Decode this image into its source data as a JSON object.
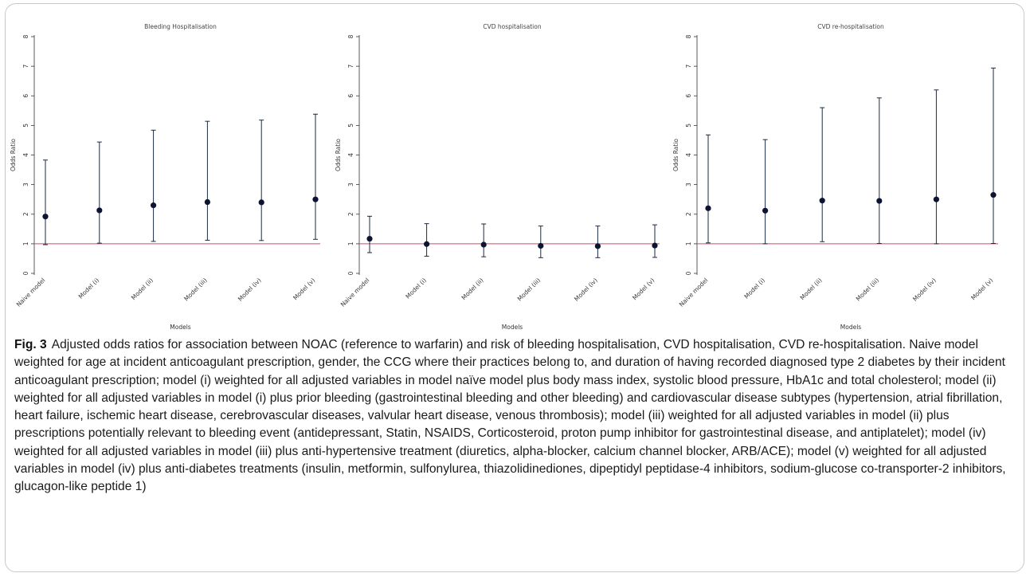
{
  "figure": {
    "label": "Fig. 3",
    "caption": "Adjusted odds ratios for association between NOAC (reference to warfarin) and risk of bleeding hospitalisation, CVD hospitalisation, CVD re-hospitalisation. Naive model weighted for age at incident anticoagulant prescription, gender, the CCG where their practices belong to, and duration of having recorded diagnosed type 2 diabetes by their incident anticoagulant prescription; model (i) weighted for all adjusted variables in model naïve model plus body mass index, systolic blood pressure, HbA1c and total cholesterol; model (ii) weighted for all adjusted variables in model (i) plus prior bleeding (gastrointestinal bleeding and other bleeding) and cardiovascular disease subtypes (hypertension, atrial fibrillation, heart failure, ischemic heart disease, cerebrovascular diseases, valvular heart disease, venous thrombosis); model (iii) weighted for all adjusted variables in model (ii) plus prescriptions potentially relevant to bleeding event (antidepressant, Statin, NSAIDS, Corticosteroid, proton pump inhibitor for gastrointestinal disease, and antiplatelet); model (iv) weighted for all adjusted variables in model (iii) plus anti-hypertensive treatment (diuretics, alpha-blocker, calcium channel blocker, ARB/ACE); model (v) weighted for all adjusted variables in model (iv) plus anti-diabetes treatments (insulin, metformin, sulfonylurea, thiazolidinediones, dipeptidyl peptidase-4 inhibitors, sodium-glucose co-transporter-2 inhibitors, glucagon-like peptide 1)"
  },
  "colors": {
    "reference_line": "#d9446b",
    "point": "#0d1433",
    "errorbar": "#1c2a3f",
    "axis": "#333333"
  },
  "chart_data": [
    {
      "type": "errorbar",
      "title": "Bleeding Hospitalisation",
      "xlabel": "Models",
      "ylabel": "Odds Ratio",
      "ylim": [
        0,
        8
      ],
      "yticks": [
        0,
        1,
        2,
        3,
        4,
        5,
        6,
        7,
        8
      ],
      "reference_line": 1,
      "categories": [
        "Naive model",
        "Model (i)",
        "Model (ii)",
        "Model (iii)",
        "Model (iv)",
        "Model (v)"
      ],
      "estimates": [
        1.92,
        2.13,
        2.3,
        2.41,
        2.4,
        2.5
      ],
      "lower": [
        0.97,
        1.02,
        1.08,
        1.12,
        1.11,
        1.15
      ],
      "upper": [
        3.83,
        4.44,
        4.84,
        5.14,
        5.18,
        5.38
      ]
    },
    {
      "type": "errorbar",
      "title": "CVD hospitalisation",
      "xlabel": "Models",
      "ylabel": "Odds Ratio",
      "ylim": [
        0,
        8
      ],
      "yticks": [
        0,
        1,
        2,
        3,
        4,
        5,
        6,
        7,
        8
      ],
      "reference_line": 1,
      "categories": [
        "Naive model",
        "Model (i)",
        "Model (ii)",
        "Model (iii)",
        "Model (iv)",
        "Model (v)"
      ],
      "estimates": [
        1.17,
        0.99,
        0.97,
        0.93,
        0.92,
        0.94
      ],
      "lower": [
        0.7,
        0.58,
        0.56,
        0.53,
        0.53,
        0.54
      ],
      "upper": [
        1.93,
        1.68,
        1.67,
        1.6,
        1.6,
        1.64
      ]
    },
    {
      "type": "errorbar",
      "title": "CVD re-hospitalisation",
      "xlabel": "Models",
      "ylabel": "Odds Ratio",
      "ylim": [
        0,
        8
      ],
      "yticks": [
        0,
        1,
        2,
        3,
        4,
        5,
        6,
        7,
        8
      ],
      "reference_line": 1,
      "categories": [
        "Naive model",
        "Model (i)",
        "Model (ii)",
        "Model (iii)",
        "Model (iv)",
        "Model (v)"
      ],
      "estimates": [
        2.2,
        2.12,
        2.46,
        2.45,
        2.5,
        2.65
      ],
      "lower": [
        1.03,
        1.0,
        1.07,
        1.01,
        1.0,
        1.01
      ],
      "upper": [
        4.68,
        4.52,
        5.6,
        5.93,
        6.2,
        6.94
      ]
    }
  ]
}
